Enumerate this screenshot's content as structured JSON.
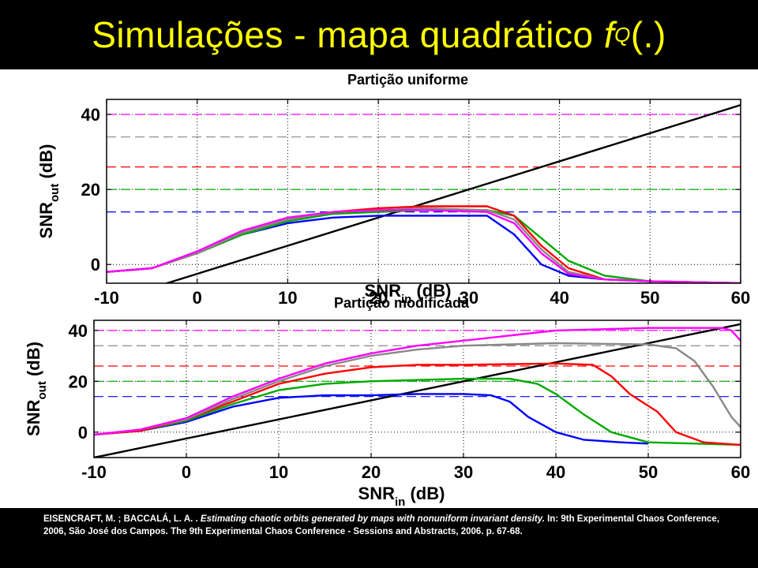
{
  "slide": {
    "title_main": "Simulações - mapa quadrático ",
    "title_f": "f",
    "title_sub": "Q",
    "title_tail": "(.)"
  },
  "citation": {
    "authors": "EISENCRAFT, M. ; BACCALÁ,  L. A. . ",
    "work": "Estimating chaotic orbits generated by maps with nonuniform invariant density.",
    "rest": " In: 9th Experimental Chaos Conference, 2006, São José dos Campos. The 9th Experimental Chaos Conference - Sessions and Abstracts,  2006. p. 67-68."
  },
  "chart_data": [
    {
      "type": "line",
      "title": "Partição uniforme",
      "xlabel_main": "SNR",
      "xlabel_sub": "in",
      "xlabel_unit": "(dB)",
      "ylabel_main": "SNR",
      "ylabel_sub": "out",
      "ylabel_unit": "(dB)",
      "xlim": [
        -10,
        60
      ],
      "ylim": [
        -5,
        44
      ],
      "xticks": [
        -10,
        0,
        10,
        20,
        30,
        40,
        50,
        60
      ],
      "yticks": [
        0,
        20,
        40
      ],
      "grid": "dotted",
      "hlines": [
        {
          "y": 40,
          "color": "#ff00ff"
        },
        {
          "y": 34,
          "color": "#888888"
        },
        {
          "y": 26,
          "color": "#ff0000"
        },
        {
          "y": 20,
          "color": "#00aa00"
        },
        {
          "y": 14,
          "color": "#0000ff"
        }
      ],
      "series": [
        {
          "color": "#000000",
          "x": [
            -10,
            70
          ],
          "y": [
            -10,
            50
          ]
        },
        {
          "color": "#0000ff",
          "x": [
            -10,
            -5,
            0,
            5,
            10,
            15,
            20,
            25,
            32,
            35,
            38,
            41,
            45,
            50,
            60
          ],
          "y": [
            -2,
            -1,
            3,
            8,
            11,
            12.5,
            13,
            13,
            13,
            8,
            0,
            -3,
            -4,
            -4.5,
            -5
          ]
        },
        {
          "color": "#00aa00",
          "x": [
            -10,
            -5,
            0,
            5,
            10,
            15,
            20,
            25,
            32,
            35,
            38,
            41,
            45,
            50,
            60
          ],
          "y": [
            -2,
            -1,
            3,
            8,
            11.5,
            13.5,
            14,
            14.5,
            14.5,
            13,
            7,
            1,
            -3,
            -4.5,
            -5
          ]
        },
        {
          "color": "#ff0000",
          "x": [
            -10,
            -5,
            0,
            5,
            10,
            15,
            20,
            25,
            32,
            35,
            38,
            41,
            45,
            50,
            60
          ],
          "y": [
            -2,
            -1,
            3,
            8.5,
            12,
            14,
            15,
            15.5,
            15.5,
            13,
            5,
            -1,
            -4,
            -4.5,
            -5
          ]
        },
        {
          "color": "#888888",
          "x": [
            -10,
            -5,
            0,
            5,
            10,
            15,
            20,
            25,
            32,
            35,
            38,
            41,
            45,
            50,
            60
          ],
          "y": [
            -2,
            -1,
            3,
            8.5,
            12,
            14,
            14.5,
            15,
            14.5,
            12,
            4,
            -2,
            -4,
            -4.5,
            -5
          ]
        },
        {
          "color": "#ff00ff",
          "x": [
            -10,
            -5,
            0,
            5,
            10,
            15,
            20,
            25,
            32,
            35,
            38,
            41,
            45,
            50,
            60
          ],
          "y": [
            -2,
            -1,
            3.5,
            9,
            12.5,
            14,
            14.5,
            14.5,
            14,
            11,
            3,
            -2.5,
            -4,
            -4.5,
            -5
          ]
        }
      ]
    },
    {
      "type": "line",
      "title": "Partição modificada",
      "xlabel_main": "SNR",
      "xlabel_sub": "in",
      "xlabel_unit": "(dB)",
      "ylabel_main": "SNR",
      "ylabel_sub": "out",
      "ylabel_unit": "(dB)",
      "xlim": [
        -10,
        60
      ],
      "ylim": [
        -10,
        44
      ],
      "xticks": [
        -10,
        0,
        10,
        20,
        30,
        40,
        50,
        60
      ],
      "yticks": [
        0,
        20,
        40
      ],
      "grid": "dotted",
      "hlines": [
        {
          "y": 40,
          "color": "#ff00ff"
        },
        {
          "y": 34,
          "color": "#888888"
        },
        {
          "y": 26,
          "color": "#ff0000"
        },
        {
          "y": 20,
          "color": "#00aa00"
        },
        {
          "y": 14,
          "color": "#0000ff"
        }
      ],
      "series": [
        {
          "color": "#000000",
          "x": [
            -10,
            70
          ],
          "y": [
            -10,
            50
          ]
        },
        {
          "color": "#0000ff",
          "x": [
            -10,
            -5,
            0,
            5,
            10,
            15,
            20,
            25,
            30,
            33,
            35,
            37,
            40,
            43,
            47,
            50
          ],
          "y": [
            -1,
            0.5,
            4,
            10,
            13.5,
            14.5,
            14.5,
            15,
            15,
            14.5,
            12,
            6,
            0,
            -3,
            -4,
            -4.5
          ]
        },
        {
          "color": "#00aa00",
          "x": [
            -10,
            -5,
            0,
            5,
            10,
            15,
            20,
            25,
            30,
            35,
            38,
            40,
            43,
            46,
            50,
            60
          ],
          "y": [
            -1,
            0.5,
            4.5,
            11,
            16.5,
            19,
            20,
            20.5,
            21,
            21,
            19,
            15,
            7,
            0,
            -4,
            -5
          ]
        },
        {
          "color": "#ff0000",
          "x": [
            -10,
            -5,
            0,
            5,
            10,
            15,
            20,
            25,
            30,
            40,
            44,
            46,
            48,
            51,
            53,
            56,
            60
          ],
          "y": [
            -1,
            0.5,
            5,
            12,
            19,
            23,
            25.5,
            26.5,
            26.5,
            27,
            26.5,
            22,
            15,
            8,
            0,
            -4,
            -5
          ]
        },
        {
          "color": "#888888",
          "x": [
            -10,
            -5,
            0,
            5,
            10,
            15,
            20,
            25,
            30,
            40,
            50,
            53,
            55,
            57,
            59,
            60
          ],
          "y": [
            -1,
            1,
            5,
            13,
            20,
            26,
            30,
            32.5,
            34,
            35,
            34.5,
            33,
            28,
            18,
            6,
            2
          ]
        },
        {
          "color": "#ff00ff",
          "x": [
            -10,
            -5,
            0,
            5,
            10,
            15,
            20,
            25,
            30,
            40,
            50,
            58,
            59,
            60
          ],
          "y": [
            -1,
            1,
            5.5,
            14,
            21,
            27,
            31,
            34,
            36,
            40,
            41,
            41,
            40,
            36
          ]
        }
      ]
    }
  ]
}
